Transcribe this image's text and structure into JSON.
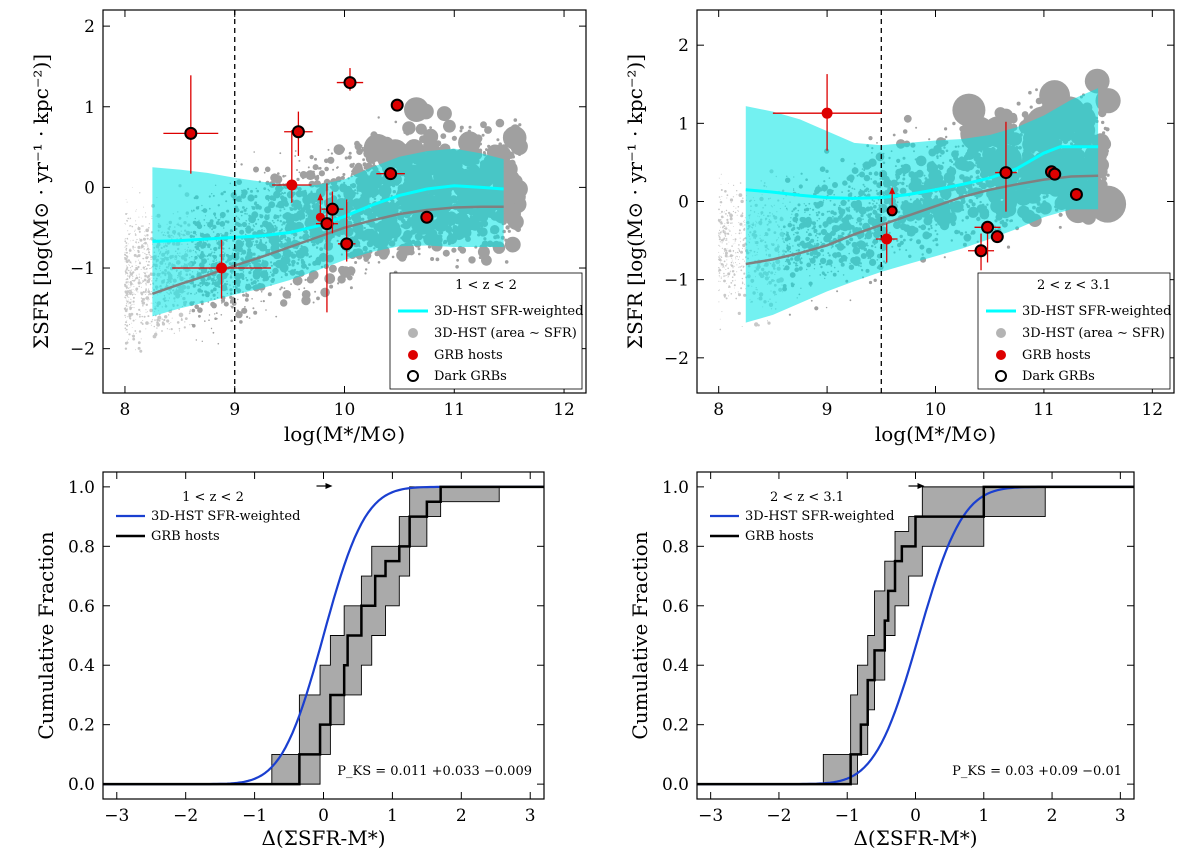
{
  "chart_data": [
    {
      "type": "scatter",
      "panel": "top-left",
      "xlabel": "log(M*/M⊙)",
      "ylabel": "ΣSFR [log(M⊙ · yr⁻¹ · kpc⁻²)]",
      "xlim": [
        7.8,
        12.2
      ],
      "ylim": [
        -2.55,
        2.2
      ],
      "xticks": [
        "8",
        "9",
        "10",
        "11",
        "12"
      ],
      "yticks": [
        "−2",
        "−1",
        "0",
        "1",
        "2"
      ],
      "redshift_label": "1 < z < 2",
      "vline": 9.0,
      "legend": [
        "3D-HST SFR-weighted",
        "3D-HST (area ∼ SFR)",
        "GRB hosts",
        "Dark GRBs"
      ],
      "sfr_weighted_line": {
        "x": [
          8.25,
          8.5,
          8.75,
          9.0,
          9.25,
          9.5,
          9.75,
          10.0,
          10.25,
          10.5,
          10.75,
          11.0,
          11.25,
          11.45
        ],
        "y": [
          -0.67,
          -0.66,
          -0.64,
          -0.62,
          -0.6,
          -0.56,
          -0.48,
          -0.36,
          -0.22,
          -0.1,
          -0.02,
          0.02,
          0.0,
          -0.02
        ]
      },
      "median_line": {
        "x": [
          8.25,
          8.5,
          8.75,
          9.0,
          9.25,
          9.5,
          9.75,
          10.0,
          10.25,
          10.5,
          10.75,
          11.0,
          11.25,
          11.45
        ],
        "y": [
          -1.32,
          -1.2,
          -1.09,
          -0.97,
          -0.86,
          -0.74,
          -0.62,
          -0.5,
          -0.41,
          -0.33,
          -0.28,
          -0.25,
          -0.24,
          -0.24
        ]
      },
      "band": {
        "x": [
          8.25,
          8.5,
          8.75,
          9.0,
          9.25,
          9.5,
          9.75,
          10.0,
          10.25,
          10.5,
          10.75,
          11.0,
          11.25,
          11.45
        ],
        "upper": [
          0.25,
          0.22,
          0.18,
          0.12,
          0.07,
          0.03,
          0.03,
          0.1,
          0.25,
          0.38,
          0.45,
          0.48,
          0.42,
          0.35
        ],
        "lower": [
          -1.6,
          -1.5,
          -1.42,
          -1.33,
          -1.25,
          -1.15,
          -1.03,
          -0.9,
          -0.8,
          -0.73,
          -0.72,
          -0.74,
          -0.74,
          -0.74
        ]
      },
      "grb_hosts": [
        {
          "x": 8.6,
          "y": 0.67,
          "xerr": 0.25,
          "yerr_up": 0.72,
          "yerr_down": 0.5,
          "dark": true
        },
        {
          "x": 8.88,
          "y": -1.0,
          "xerr": 0.45,
          "yerr_up": 0.35,
          "yerr_down": 0.38,
          "dark": false
        },
        {
          "x": 9.52,
          "y": 0.03,
          "xerr": 0.18,
          "yerr_up": 0.68,
          "yerr_down": 0.22,
          "dark": false
        },
        {
          "x": 9.58,
          "y": 0.69,
          "xerr": 0.13,
          "yerr_up": 0.25,
          "yerr_down": 0.3,
          "dark": true
        },
        {
          "x": 9.78,
          "y": -0.37,
          "xerr": 0.0,
          "yerr_up": 0.0,
          "yerr_down": 0.0,
          "dark": false,
          "upper_arrow": true
        },
        {
          "x": 9.84,
          "y": -0.45,
          "xerr": 0.1,
          "yerr_up": 0.5,
          "yerr_down": 1.1,
          "dark": true
        },
        {
          "x": 9.89,
          "y": -0.27,
          "xerr": 0.1,
          "yerr_up": 0.22,
          "yerr_down": 0.3,
          "dark": true
        },
        {
          "x": 10.02,
          "y": -0.7,
          "xerr": 0.08,
          "yerr_up": 0.55,
          "yerr_down": 0.22,
          "dark": true
        },
        {
          "x": 10.05,
          "y": 1.3,
          "xerr": 0.12,
          "yerr_up": 0.18,
          "yerr_down": 0.1,
          "dark": true
        },
        {
          "x": 10.42,
          "y": 0.17,
          "xerr": 0.13,
          "yerr_up": 0.0,
          "yerr_down": 0.0,
          "dark": true
        },
        {
          "x": 10.48,
          "y": 1.02,
          "xerr": 0.0,
          "yerr_up": 0.0,
          "yerr_down": 0.0,
          "dark": true
        },
        {
          "x": 10.75,
          "y": -0.37,
          "xerr": 0.0,
          "yerr_up": 0.0,
          "yerr_down": 0.0,
          "dark": true
        }
      ]
    },
    {
      "type": "scatter",
      "panel": "top-right",
      "xlabel": "log(M*/M⊙)",
      "ylabel": "ΣSFR [log(M⊙ · yr⁻¹ · kpc⁻²)]",
      "xlim": [
        7.8,
        12.2
      ],
      "ylim": [
        -2.45,
        2.45
      ],
      "xticks": [
        "8",
        "9",
        "10",
        "11",
        "12"
      ],
      "yticks": [
        "−2",
        "−1",
        "0",
        "1",
        "2"
      ],
      "redshift_label": "2 < z < 3.1",
      "vline": 9.5,
      "legend": [
        "3D-HST SFR-weighted",
        "3D-HST (area ∼ SFR)",
        "GRB hosts",
        "Dark GRBs"
      ],
      "sfr_weighted_line": {
        "x": [
          8.25,
          8.5,
          8.75,
          9.0,
          9.25,
          9.5,
          9.75,
          10.0,
          10.25,
          10.5,
          10.75,
          11.0,
          11.15,
          11.5
        ],
        "y": [
          0.15,
          0.12,
          0.08,
          0.05,
          0.04,
          0.05,
          0.09,
          0.15,
          0.22,
          0.3,
          0.42,
          0.62,
          0.7,
          0.7
        ]
      },
      "median_line": {
        "x": [
          8.25,
          8.5,
          8.75,
          9.0,
          9.25,
          9.5,
          9.75,
          10.0,
          10.25,
          10.5,
          10.75,
          11.0,
          11.25,
          11.5
        ],
        "y": [
          -0.8,
          -0.74,
          -0.66,
          -0.56,
          -0.42,
          -0.3,
          -0.18,
          -0.06,
          0.06,
          0.15,
          0.22,
          0.28,
          0.32,
          0.33
        ]
      },
      "band": {
        "x": [
          8.25,
          8.5,
          8.75,
          9.0,
          9.25,
          9.5,
          9.75,
          10.0,
          10.25,
          10.5,
          10.75,
          11.0,
          11.25,
          11.5
        ],
        "upper": [
          1.22,
          1.15,
          1.05,
          0.9,
          0.75,
          0.72,
          0.75,
          0.78,
          0.8,
          0.85,
          0.95,
          1.1,
          1.3,
          1.45
        ],
        "lower": [
          -1.55,
          -1.45,
          -1.3,
          -1.15,
          -1.02,
          -0.9,
          -0.8,
          -0.7,
          -0.6,
          -0.48,
          -0.35,
          -0.2,
          -0.1,
          -0.1
        ]
      },
      "grb_hosts": [
        {
          "x": 9.0,
          "y": 1.13,
          "xerr": 0.5,
          "yerr_up": 0.5,
          "yerr_down": 0.48,
          "dark": false
        },
        {
          "x": 9.55,
          "y": -0.48,
          "xerr": 0.1,
          "yerr_up": 0.2,
          "yerr_down": 0.3,
          "dark": false
        },
        {
          "x": 9.6,
          "y": -0.12,
          "xerr": 0.0,
          "yerr_up": 0.0,
          "yerr_down": 0.0,
          "dark": true,
          "upper_arrow": true
        },
        {
          "x": 10.42,
          "y": -0.63,
          "xerr": 0.12,
          "yerr_up": 0.22,
          "yerr_down": 0.25,
          "dark": true
        },
        {
          "x": 10.48,
          "y": -0.33,
          "xerr": 0.12,
          "yerr_up": 0.0,
          "yerr_down": 0.45,
          "dark": true
        },
        {
          "x": 10.57,
          "y": -0.45,
          "xerr": 0.0,
          "yerr_up": 0.0,
          "yerr_down": 0.0,
          "dark": true
        },
        {
          "x": 10.65,
          "y": 0.37,
          "xerr": 0.1,
          "yerr_up": 0.65,
          "yerr_down": 0.5,
          "dark": true
        },
        {
          "x": 11.07,
          "y": 0.38,
          "xerr": 0.0,
          "yerr_up": 0.0,
          "yerr_down": 0.0,
          "dark": true
        },
        {
          "x": 11.1,
          "y": 0.35,
          "xerr": 0.0,
          "yerr_up": 0.0,
          "yerr_down": 0.0,
          "dark": true
        },
        {
          "x": 11.3,
          "y": 0.09,
          "xerr": 0.0,
          "yerr_up": 0.0,
          "yerr_down": 0.0,
          "dark": true
        }
      ]
    },
    {
      "type": "line",
      "panel": "bottom-left",
      "xlabel": "Δ(ΣSFR-M*)",
      "ylabel": "Cumulative Fraction",
      "xlim": [
        -3.2,
        3.2
      ],
      "ylim": [
        -0.05,
        1.05
      ],
      "xticks": [
        "−3",
        "−2",
        "−1",
        "0",
        "1",
        "2",
        "3"
      ],
      "yticks": [
        "0.0",
        "0.2",
        "0.4",
        "0.6",
        "0.8",
        "1.0"
      ],
      "redshift_label": "1 < z < 2",
      "legend": [
        "3D-HST SFR-weighted",
        "GRB hosts"
      ],
      "ks_label": "P_KS = 0.011 +0.033 −0.009",
      "cdf_center": 0.0,
      "cdf_width": 0.34,
      "grb_steps": {
        "x": [
          -0.35,
          -0.05,
          0.1,
          0.3,
          0.35,
          0.55,
          0.75,
          0.9,
          1.1,
          1.25,
          1.5,
          1.7
        ],
        "y": [
          0.1,
          0.2,
          0.3,
          0.4,
          0.5,
          0.6,
          0.7,
          0.75,
          0.8,
          0.9,
          0.95,
          1.0
        ]
      },
      "grb_band": {
        "x": [
          -0.75,
          -0.35,
          -0.35,
          -0.05,
          0.1,
          0.3,
          0.55,
          0.7,
          0.9,
          1.1,
          1.25,
          1.5,
          1.7,
          2.55
        ],
        "upper": [
          0.1,
          0.2,
          0.3,
          0.4,
          0.5,
          0.6,
          0.7,
          0.8,
          0.8,
          0.9,
          1.0,
          1.0,
          1.0,
          1.0
        ],
        "lower": [
          0.0,
          0.0,
          0.0,
          0.1,
          0.2,
          0.3,
          0.4,
          0.5,
          0.6,
          0.7,
          0.8,
          0.9,
          0.95,
          1.0
        ]
      },
      "arrow_x": 0.0
    },
    {
      "type": "line",
      "panel": "bottom-right",
      "xlabel": "Δ(ΣSFR-M*)",
      "ylabel": "Cumulative Fraction",
      "xlim": [
        -3.2,
        3.2
      ],
      "ylim": [
        -0.05,
        1.05
      ],
      "xticks": [
        "−3",
        "−2",
        "−1",
        "0",
        "1",
        "2",
        "3"
      ],
      "yticks": [
        "0.0",
        "0.2",
        "0.4",
        "0.6",
        "0.8",
        "1.0"
      ],
      "redshift_label": "2 < z < 3.1",
      "legend": [
        "3D-HST SFR-weighted",
        "GRB hosts"
      ],
      "ks_label": "P_KS = 0.03 +0.09 −0.01",
      "cdf_center": 0.05,
      "cdf_width": 0.36,
      "grb_steps": {
        "x": [
          -0.95,
          -0.8,
          -0.7,
          -0.6,
          -0.45,
          -0.4,
          -0.3,
          -0.2,
          0.0,
          1.0
        ],
        "y": [
          0.1,
          0.2,
          0.35,
          0.45,
          0.55,
          0.65,
          0.75,
          0.8,
          0.9,
          1.0
        ]
      },
      "grb_band": {
        "x": [
          -1.35,
          -0.95,
          -0.85,
          -0.7,
          -0.6,
          -0.45,
          -0.3,
          -0.1,
          0.1,
          1.0,
          1.9
        ],
        "upper": [
          0.1,
          0.3,
          0.4,
          0.5,
          0.65,
          0.75,
          0.85,
          0.9,
          1.0,
          1.0,
          1.0
        ],
        "lower": [
          0.0,
          0.0,
          0.1,
          0.25,
          0.35,
          0.5,
          0.6,
          0.7,
          0.8,
          0.9,
          1.0
        ]
      },
      "arrow_x": 0.0
    }
  ],
  "colors": {
    "cyan": "#00ffff",
    "band": "#00e5e5",
    "gray": "#a0a0a0",
    "median": "#808080",
    "red": "#dd0000",
    "blue": "#1a3fd0"
  }
}
